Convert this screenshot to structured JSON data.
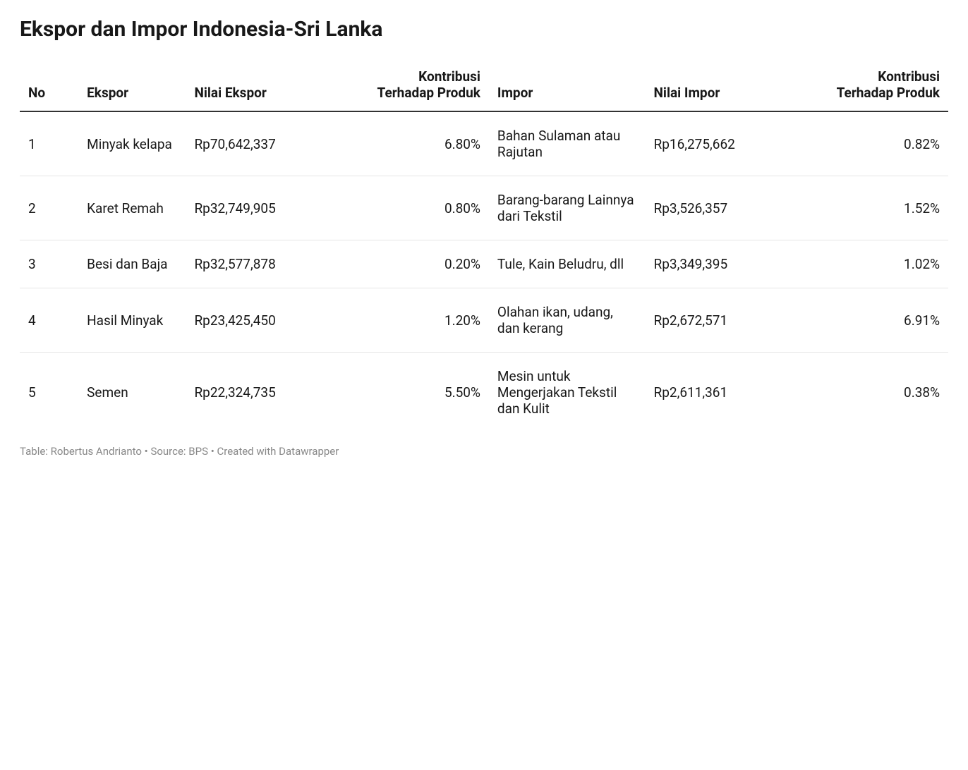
{
  "title": "Ekspor dan Impor Indonesia-Sri Lanka",
  "columns": {
    "no": "No",
    "ekspor": "Ekspor",
    "nilai_ekspor": "Nilai Ekspor",
    "kontribusi1": "Kontribusi Terhadap Produk",
    "impor": "Impor",
    "nilai_impor": "Nilai Impor",
    "kontribusi2": "Kontribusi Terhadap Produk"
  },
  "rows": [
    {
      "no": "1",
      "ekspor": "Minyak kelapa",
      "nilai_ekspor": "Rp70,642,337",
      "kontribusi1": "6.80%",
      "impor": "Bahan Sulaman atau Rajutan",
      "nilai_impor": "Rp16,275,662",
      "kontribusi2": "0.82%"
    },
    {
      "no": "2",
      "ekspor": "Karet Remah",
      "nilai_ekspor": "Rp32,749,905",
      "kontribusi1": "0.80%",
      "impor": "Barang-barang Lainnya dari Tekstil",
      "nilai_impor": "Rp3,526,357",
      "kontribusi2": "1.52%"
    },
    {
      "no": "3",
      "ekspor": "Besi dan Baja",
      "nilai_ekspor": "Rp32,577,878",
      "kontribusi1": "0.20%",
      "impor": "Tule, Kain Beludru, dll",
      "nilai_impor": "Rp3,349,395",
      "kontribusi2": "1.02%"
    },
    {
      "no": "4",
      "ekspor": "Hasil Minyak",
      "nilai_ekspor": "Rp23,425,450",
      "kontribusi1": "1.20%",
      "impor": "Olahan ikan, udang, dan kerang",
      "nilai_impor": "Rp2,672,571",
      "kontribusi2": "6.91%"
    },
    {
      "no": "5",
      "ekspor": "Semen",
      "nilai_ekspor": "Rp22,324,735",
      "kontribusi1": "5.50%",
      "impor": "Mesin untuk Mengerjakan Tekstil dan Kulit",
      "nilai_impor": "Rp2,611,361",
      "kontribusi2": "0.38%"
    }
  ],
  "footer": "Table: Robertus Andrianto • Source: BPS • Created with Datawrapper",
  "styling": {
    "title_fontsize": 30,
    "title_fontweight": 700,
    "header_fontsize": 19,
    "header_fontweight": 700,
    "body_fontsize": 19,
    "footer_fontsize": 15,
    "text_color": "#181818",
    "footer_color": "#888888",
    "header_border_color": "#333333",
    "row_border_color": "#e6e6e6",
    "background_color": "#ffffff",
    "column_widths_pct": [
      6,
      11,
      17,
      14,
      16,
      17,
      14
    ],
    "column_align": [
      "left",
      "left",
      "left",
      "right",
      "left",
      "left",
      "right"
    ]
  }
}
